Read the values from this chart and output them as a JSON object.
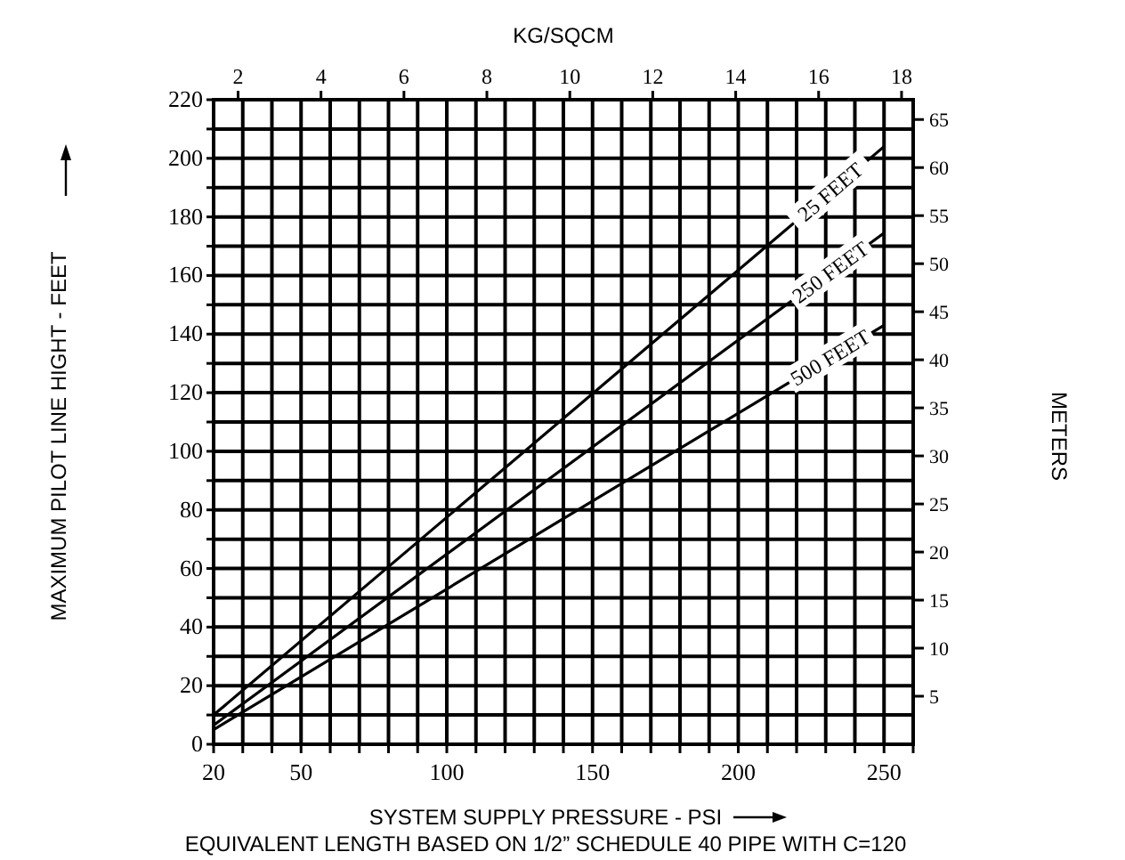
{
  "chart_data": {
    "type": "line",
    "title": "KG/SQCM",
    "xlabel": "SYSTEM SUPPLY PRESSURE - PSI",
    "ylabel": "MAXIMUM PILOT LINE HIGHT - FEET",
    "y2label": "METERS",
    "annotations": [
      "EQUIVALENT LENGTH BASED ON 1/2” SCHEDULE 40 PIPE WITH C=120"
    ],
    "xlim": [
      20,
      260
    ],
    "xticks": [
      20,
      {
        "value": 30,
        "label": null
      },
      {
        "value": 40,
        "label": null
      },
      50,
      {
        "value": 60,
        "label": null
      },
      {
        "value": 70,
        "label": null
      },
      {
        "value": 80,
        "label": null
      },
      {
        "value": 90,
        "label": null
      },
      100,
      {
        "value": 110,
        "label": null
      },
      {
        "value": 120,
        "label": null
      },
      {
        "value": 130,
        "label": null
      },
      {
        "value": 140,
        "label": null
      },
      150,
      {
        "value": 160,
        "label": null
      },
      {
        "value": 170,
        "label": null
      },
      {
        "value": 180,
        "label": null
      },
      {
        "value": 190,
        "label": null
      },
      200,
      {
        "value": 210,
        "label": null
      },
      {
        "value": 220,
        "label": null
      },
      {
        "value": 230,
        "label": null
      },
      {
        "value": 240,
        "label": null
      },
      250,
      {
        "value": 260,
        "label": null
      }
    ],
    "ylim": [
      0,
      220
    ],
    "yticks": [
      0,
      {
        "value": 10,
        "label": null
      },
      20,
      {
        "value": 30,
        "label": null
      },
      40,
      {
        "value": 50,
        "label": null
      },
      60,
      {
        "value": 70,
        "label": null
      },
      80,
      {
        "value": 90,
        "label": null
      },
      100,
      {
        "value": 110,
        "label": null
      },
      120,
      {
        "value": 130,
        "label": null
      },
      140,
      {
        "value": 150,
        "label": null
      },
      160,
      {
        "value": 170,
        "label": null
      },
      180,
      {
        "value": 190,
        "label": null
      },
      200,
      {
        "value": 210,
        "label": null
      },
      220
    ],
    "x2lim": [
      1.41,
      18.28
    ],
    "x2ticks": [
      2,
      4,
      6,
      8,
      10,
      12,
      14,
      16,
      18
    ],
    "y2lim": [
      0,
      67.06
    ],
    "y2ticks": [
      5,
      10,
      15,
      20,
      25,
      30,
      35,
      40,
      45,
      50,
      55,
      60,
      65
    ],
    "grid": true,
    "x": [
      20,
      250
    ],
    "series": [
      {
        "name": "25 FEET",
        "color": "#000000",
        "values": [
          10,
          204
        ]
      },
      {
        "name": "250 FEET",
        "color": "#000000",
        "values": [
          6.5,
          174.5
        ]
      },
      {
        "name": "500 FEET",
        "color": "#000000",
        "values": [
          5,
          143
        ]
      }
    ]
  }
}
